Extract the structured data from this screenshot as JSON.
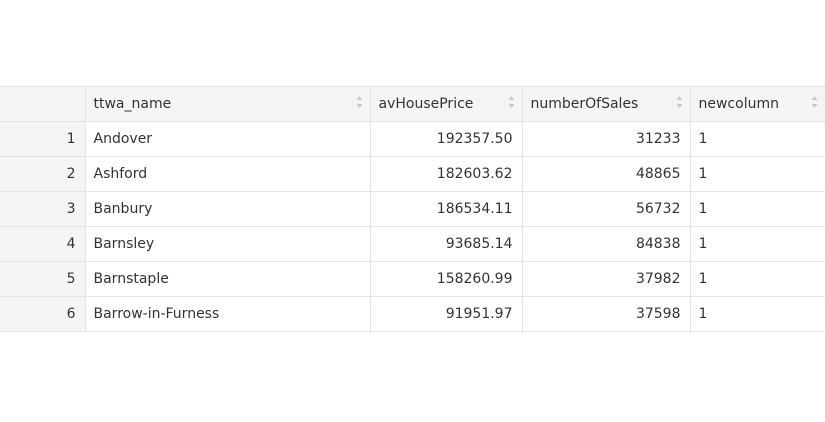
{
  "table": {
    "columns": [
      {
        "label": "",
        "sortable": false
      },
      {
        "label": "ttwa_name",
        "sortable": true
      },
      {
        "label": "avHousePrice",
        "sortable": true
      },
      {
        "label": "numberOfSales",
        "sortable": true
      },
      {
        "label": "newcolumn",
        "sortable": true
      }
    ],
    "rows": [
      {
        "index": "1",
        "ttwa_name": "Andover",
        "avHousePrice": "192357.50",
        "numberOfSales": "31233",
        "newcolumn": "1"
      },
      {
        "index": "2",
        "ttwa_name": "Ashford",
        "avHousePrice": "182603.62",
        "numberOfSales": "48865",
        "newcolumn": "1"
      },
      {
        "index": "3",
        "ttwa_name": "Banbury",
        "avHousePrice": "186534.11",
        "numberOfSales": "56732",
        "newcolumn": "1"
      },
      {
        "index": "4",
        "ttwa_name": "Barnsley",
        "avHousePrice": "93685.14",
        "numberOfSales": "84838",
        "newcolumn": "1"
      },
      {
        "index": "5",
        "ttwa_name": "Barnstaple",
        "avHousePrice": "158260.99",
        "numberOfSales": "37982",
        "newcolumn": "1"
      },
      {
        "index": "6",
        "ttwa_name": "Barrow-in-Furness",
        "avHousePrice": "91951.97",
        "numberOfSales": "37598",
        "newcolumn": "1"
      }
    ]
  },
  "icons": {
    "sort": "sort-arrows-icon"
  },
  "colors": {
    "header_bg": "#f5f5f5",
    "border": "#e4e4e4",
    "text": "#333333",
    "sort_icon": "#c8c8c8"
  }
}
